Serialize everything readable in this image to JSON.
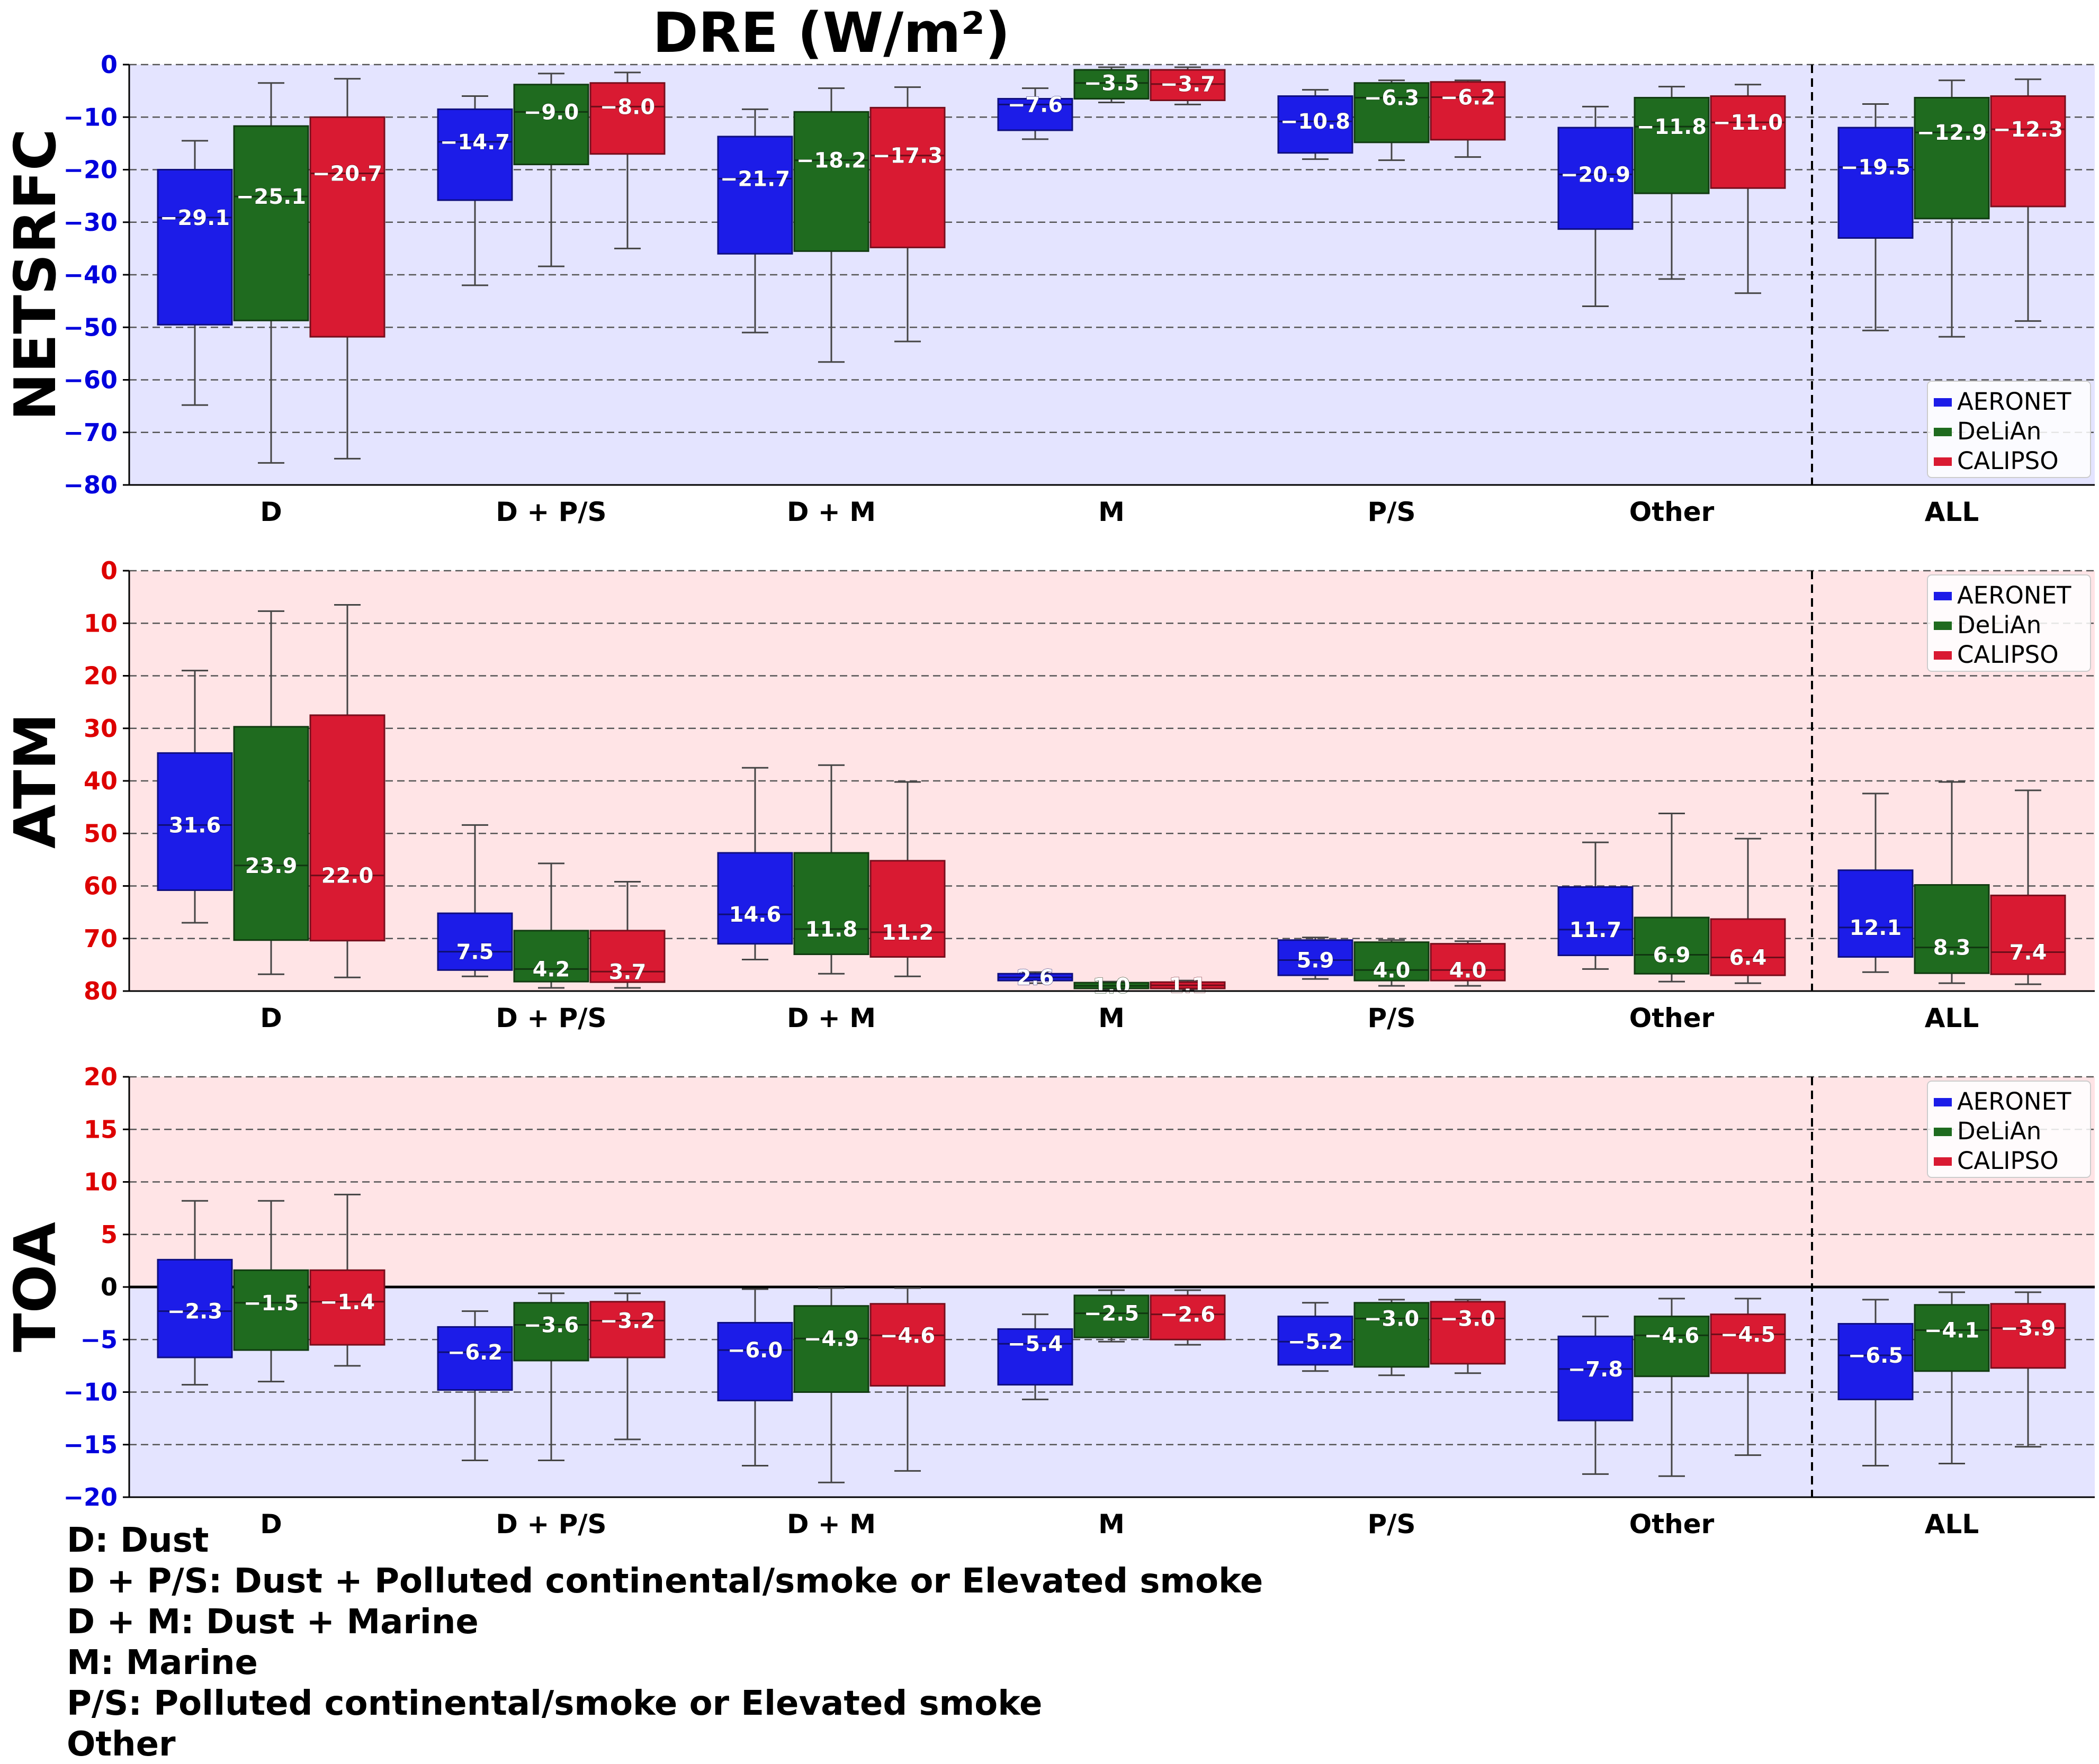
{
  "chart_data": {
    "title": "DRE (W/m²)",
    "type": "boxplot",
    "categories": [
      "D",
      "D + P/S",
      "D + M",
      "M",
      "P/S",
      "Other",
      "ALL"
    ],
    "series_names": [
      "AERONET",
      "DeLiAn",
      "CALIPSO"
    ],
    "series_colors": [
      "#1c1ce8",
      "#1f6b1f",
      "#d91a32"
    ],
    "legend_position": "right",
    "grid": true,
    "separator_before": "ALL",
    "panels": [
      {
        "ylabel": "NETSRFC",
        "ylim": [
          -80,
          0
        ],
        "yticks": [
          "0",
          "−10",
          "−20",
          "−30",
          "−40",
          "−50",
          "−60",
          "−70",
          "−80"
        ],
        "tick_color": "#0000dd",
        "background": "#e4e4ff",
        "boxes": [
          [
            {
              "wl": -64.8,
              "q1": -49.5,
              "med": -29.1,
              "q3": -20.0,
              "wh": -14.5
            },
            {
              "wl": -75.8,
              "q1": -48.7,
              "med": -25.1,
              "q3": -11.7,
              "wh": -3.5
            },
            {
              "wl": -75.0,
              "q1": -51.8,
              "med": -20.7,
              "q3": -10.0,
              "wh": -2.7
            }
          ],
          [
            {
              "wl": -42.0,
              "q1": -25.8,
              "med": -14.7,
              "q3": -8.5,
              "wh": -6.0
            },
            {
              "wl": -38.4,
              "q1": -19.0,
              "med": -9.0,
              "q3": -3.8,
              "wh": -1.7
            },
            {
              "wl": -35.0,
              "q1": -17.0,
              "med": -8.0,
              "q3": -3.5,
              "wh": -1.5
            }
          ],
          [
            {
              "wl": -51.0,
              "q1": -36.0,
              "med": -21.7,
              "q3": -13.7,
              "wh": -8.5
            },
            {
              "wl": -56.6,
              "q1": -35.5,
              "med": -18.2,
              "q3": -9.0,
              "wh": -4.5
            },
            {
              "wl": -52.7,
              "q1": -34.8,
              "med": -17.3,
              "q3": -8.2,
              "wh": -4.3
            }
          ],
          [
            {
              "wl": -14.2,
              "q1": -12.5,
              "med": -7.6,
              "q3": -6.5,
              "wh": -4.5
            },
            {
              "wl": -7.2,
              "q1": -6.5,
              "med": -3.5,
              "q3": -1.0,
              "wh": -0.5
            },
            {
              "wl": -7.6,
              "q1": -6.8,
              "med": -3.7,
              "q3": -1.0,
              "wh": -0.5
            }
          ],
          [
            {
              "wl": -18.0,
              "q1": -16.8,
              "med": -10.8,
              "q3": -6.0,
              "wh": -4.8
            },
            {
              "wl": -18.2,
              "q1": -14.8,
              "med": -6.3,
              "q3": -3.5,
              "wh": -3.0
            },
            {
              "wl": -17.6,
              "q1": -14.3,
              "med": -6.2,
              "q3": -3.3,
              "wh": -3.0
            }
          ],
          [
            {
              "wl": -46.0,
              "q1": -31.3,
              "med": -20.9,
              "q3": -12.0,
              "wh": -8.0
            },
            {
              "wl": -40.8,
              "q1": -24.5,
              "med": -11.8,
              "q3": -6.3,
              "wh": -4.2
            },
            {
              "wl": -43.5,
              "q1": -23.5,
              "med": -11.0,
              "q3": -6.0,
              "wh": -3.8
            }
          ],
          [
            {
              "wl": -50.6,
              "q1": -33.0,
              "med": -19.5,
              "q3": -12.0,
              "wh": -7.5
            },
            {
              "wl": -51.8,
              "q1": -29.3,
              "med": -12.9,
              "q3": -6.3,
              "wh": -3.0
            },
            {
              "wl": -48.8,
              "q1": -27.0,
              "med": -12.3,
              "q3": -6.0,
              "wh": -2.8
            }
          ]
        ]
      },
      {
        "ylabel": "ATM",
        "ylim": [
          0,
          80
        ],
        "yticks": [
          "0",
          "10",
          "20",
          "30",
          "40",
          "50",
          "60",
          "70",
          "80"
        ],
        "tick_color": "#dd0000",
        "background": "#ffe4e6",
        "boxes": [
          [
            {
              "wl": 13.0,
              "q1": 19.2,
              "med": 31.6,
              "q3": 45.3,
              "wh": 61.0
            },
            {
              "wl": 3.2,
              "q1": 9.7,
              "med": 23.9,
              "q3": 50.3,
              "wh": 72.3
            },
            {
              "wl": 2.6,
              "q1": 9.6,
              "med": 22.0,
              "q3": 52.5,
              "wh": 73.5
            }
          ],
          [
            {
              "wl": 2.8,
              "q1": 4.0,
              "med": 7.5,
              "q3": 14.8,
              "wh": 31.6
            },
            {
              "wl": 0.6,
              "q1": 1.8,
              "med": 4.2,
              "q3": 11.5,
              "wh": 24.3
            },
            {
              "wl": 0.6,
              "q1": 1.7,
              "med": 3.7,
              "q3": 11.5,
              "wh": 20.8
            }
          ],
          [
            {
              "wl": 6.0,
              "q1": 9.0,
              "med": 14.6,
              "q3": 26.3,
              "wh": 42.5
            },
            {
              "wl": 3.3,
              "q1": 7.0,
              "med": 11.8,
              "q3": 26.3,
              "wh": 43.0
            },
            {
              "wl": 2.8,
              "q1": 6.5,
              "med": 11.2,
              "q3": 24.8,
              "wh": 39.8
            }
          ],
          [
            {
              "wl": 1.5,
              "q1": 2.0,
              "med": 2.6,
              "q3": 3.3,
              "wh": 3.6
            },
            {
              "wl": 0.3,
              "q1": 0.5,
              "med": 1.0,
              "q3": 1.6,
              "wh": 1.8
            },
            {
              "wl": 0.3,
              "q1": 0.5,
              "med": 1.1,
              "q3": 1.7,
              "wh": 2.0
            }
          ],
          [
            {
              "wl": 2.3,
              "q1": 3.0,
              "med": 5.9,
              "q3": 9.7,
              "wh": 10.2
            },
            {
              "wl": 1.0,
              "q1": 2.0,
              "med": 4.0,
              "q3": 9.3,
              "wh": 9.7
            },
            {
              "wl": 1.0,
              "q1": 2.0,
              "med": 4.0,
              "q3": 9.0,
              "wh": 9.5
            }
          ],
          [
            {
              "wl": 4.2,
              "q1": 6.8,
              "med": 11.7,
              "q3": 19.8,
              "wh": 28.3
            },
            {
              "wl": 1.8,
              "q1": 3.3,
              "med": 6.9,
              "q3": 14.0,
              "wh": 33.8
            },
            {
              "wl": 1.5,
              "q1": 3.0,
              "med": 6.4,
              "q3": 13.7,
              "wh": 29.0
            }
          ],
          [
            {
              "wl": 3.6,
              "q1": 6.5,
              "med": 12.1,
              "q3": 23.0,
              "wh": 37.6
            },
            {
              "wl": 1.5,
              "q1": 3.4,
              "med": 8.3,
              "q3": 20.2,
              "wh": 39.8
            },
            {
              "wl": 1.3,
              "q1": 3.2,
              "med": 7.4,
              "q3": 18.2,
              "wh": 38.2
            }
          ]
        ]
      },
      {
        "ylabel": "TOA",
        "ylim": [
          -20,
          20
        ],
        "yticks": [
          "20",
          "15",
          "10",
          "5",
          "0",
          "−5",
          "−10",
          "−15",
          "−20"
        ],
        "tick_color": "#dd0000",
        "tick_color_negative": "#0000dd",
        "background_positive": "#ffe4e6",
        "background_negative": "#e4e4ff",
        "boxes": [
          [
            {
              "wl": -9.3,
              "q1": -6.7,
              "med": -2.3,
              "q3": 2.6,
              "wh": 8.2
            },
            {
              "wl": -9.0,
              "q1": -6.0,
              "med": -1.5,
              "q3": 1.6,
              "wh": 8.2
            },
            {
              "wl": -7.5,
              "q1": -5.5,
              "med": -1.4,
              "q3": 1.6,
              "wh": 8.8
            }
          ],
          [
            {
              "wl": -16.5,
              "q1": -9.8,
              "med": -6.2,
              "q3": -3.8,
              "wh": -2.3
            },
            {
              "wl": -16.5,
              "q1": -7.0,
              "med": -3.6,
              "q3": -1.5,
              "wh": -0.6
            },
            {
              "wl": -14.5,
              "q1": -6.7,
              "med": -3.2,
              "q3": -1.4,
              "wh": -0.6
            }
          ],
          [
            {
              "wl": -17.0,
              "q1": -10.8,
              "med": -6.0,
              "q3": -3.4,
              "wh": -0.2
            },
            {
              "wl": -18.6,
              "q1": -10.0,
              "med": -4.9,
              "q3": -1.8,
              "wh": -0.1
            },
            {
              "wl": -17.5,
              "q1": -9.4,
              "med": -4.6,
              "q3": -1.6,
              "wh": -0.1
            }
          ],
          [
            {
              "wl": -10.7,
              "q1": -9.3,
              "med": -5.4,
              "q3": -4.0,
              "wh": -2.6
            },
            {
              "wl": -5.2,
              "q1": -4.8,
              "med": -2.5,
              "q3": -0.8,
              "wh": -0.3
            },
            {
              "wl": -5.5,
              "q1": -5.0,
              "med": -2.6,
              "q3": -0.8,
              "wh": -0.3
            }
          ],
          [
            {
              "wl": -8.0,
              "q1": -7.4,
              "med": -5.2,
              "q3": -2.8,
              "wh": -1.5
            },
            {
              "wl": -8.4,
              "q1": -7.6,
              "med": -3.0,
              "q3": -1.5,
              "wh": -1.2
            },
            {
              "wl": -8.2,
              "q1": -7.3,
              "med": -3.0,
              "q3": -1.4,
              "wh": -1.2
            }
          ],
          [
            {
              "wl": -17.8,
              "q1": -12.7,
              "med": -7.8,
              "q3": -4.7,
              "wh": -2.8
            },
            {
              "wl": -18.0,
              "q1": -8.5,
              "med": -4.6,
              "q3": -2.8,
              "wh": -1.1
            },
            {
              "wl": -16.0,
              "q1": -8.2,
              "med": -4.5,
              "q3": -2.6,
              "wh": -1.1
            }
          ],
          [
            {
              "wl": -17.0,
              "q1": -10.7,
              "med": -6.5,
              "q3": -3.5,
              "wh": -1.2
            },
            {
              "wl": -16.8,
              "q1": -8.0,
              "med": -4.1,
              "q3": -1.7,
              "wh": -0.5
            },
            {
              "wl": -15.2,
              "q1": -7.7,
              "med": -3.9,
              "q3": -1.6,
              "wh": -0.5
            }
          ]
        ]
      }
    ]
  },
  "notes": [
    "D: Dust",
    "D + P/S: Dust + Polluted continental/smoke or Elevated smoke",
    "D + M: Dust + Marine",
    "M: Marine",
    "P/S: Polluted continental/smoke or Elevated smoke",
    "Other"
  ]
}
